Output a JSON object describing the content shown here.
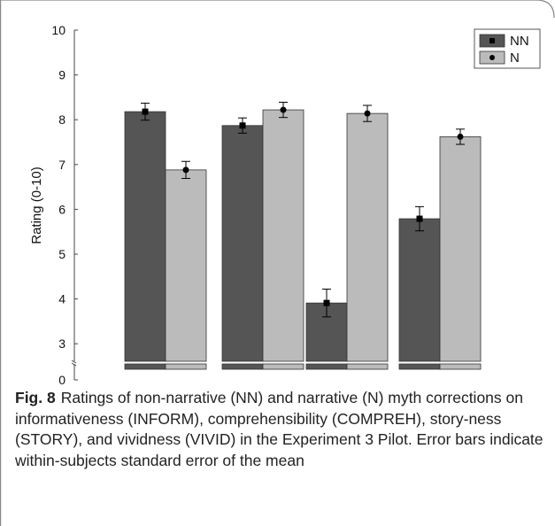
{
  "chart_data": {
    "type": "bar",
    "categories": [
      "INFORM",
      "COMPREH",
      "STORY",
      "VIVID"
    ],
    "series": [
      {
        "name": "NN",
        "values": [
          8.18,
          7.87,
          3.91,
          5.79
        ],
        "errors": [
          0.19,
          0.17,
          0.31,
          0.27
        ],
        "color": "#555555",
        "marker": "square"
      },
      {
        "name": "N",
        "values": [
          6.88,
          8.22,
          8.14,
          7.62
        ],
        "errors": [
          0.19,
          0.17,
          0.18,
          0.17
        ],
        "color": "#bbbbbb",
        "marker": "circle"
      }
    ],
    "xlabel": "",
    "ylabel": "Rating (0-10)",
    "yticks": [
      "10",
      "9",
      "8",
      "7",
      "6",
      "5",
      "4",
      "3",
      "0"
    ],
    "ylim": [
      2.5,
      10
    ],
    "axis_break": true,
    "legend": "top-right",
    "grid": false
  },
  "caption": {
    "label": "Fig. 8",
    "text": "Ratings of non-narrative (NN) and narrative (N) myth corrections on informativeness (INFORM), comprehensibility (COMPREH), story-ness (STORY), and vividness (VIVID) in the Experiment 3 Pilot. Error bars indicate within-subjects standard error of the mean"
  }
}
